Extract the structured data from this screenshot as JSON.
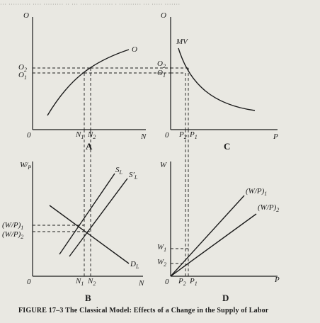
{
  "figure": {
    "caption": "FIGURE 17–3  The Classical Model: Effects of a Change in the Supply of Labor"
  },
  "panel_a": {
    "label": "A",
    "y_axis": "O",
    "x_axis": "N",
    "origin": "0",
    "curve": "O",
    "y_ticks": [
      "O",
      "O"
    ],
    "y_tick_subs": [
      "2",
      "1"
    ],
    "x_ticks": [
      "N",
      "N"
    ],
    "x_tick_subs": [
      "1",
      "2"
    ]
  },
  "panel_b": {
    "label": "B",
    "y_axis_num": "W",
    "y_axis_den": "P",
    "x_axis": "N",
    "origin": "0",
    "supply": "S",
    "supply_sub": "L",
    "supply_new": "S′",
    "supply_new_sub": "L",
    "demand": "D",
    "demand_sub": "L",
    "y_ticks": [
      "(W/P)",
      "(W/P)"
    ],
    "y_tick_subs": [
      "1",
      "2"
    ],
    "x_ticks": [
      "N",
      "N"
    ],
    "x_tick_subs": [
      "1",
      "2"
    ]
  },
  "panel_c": {
    "label": "C",
    "y_axis": "O",
    "x_axis": "P",
    "origin": "0",
    "curve": "MV",
    "y_ticks": [
      "O",
      "O"
    ],
    "y_tick_subs": [
      "2",
      "1"
    ],
    "x_ticks": [
      "P",
      "P"
    ],
    "x_tick_subs": [
      "2",
      "1"
    ]
  },
  "panel_d": {
    "label": "D",
    "y_axis": "W",
    "x_axis": "P",
    "origin": "0",
    "rays": [
      "(W/P)",
      "(W/P)"
    ],
    "ray_subs": [
      "1",
      "2"
    ],
    "y_ticks": [
      "W",
      "W"
    ],
    "y_tick_subs": [
      "1",
      "2"
    ],
    "x_ticks": [
      "P",
      "P"
    ],
    "x_tick_subs": [
      "2",
      "1"
    ]
  }
}
